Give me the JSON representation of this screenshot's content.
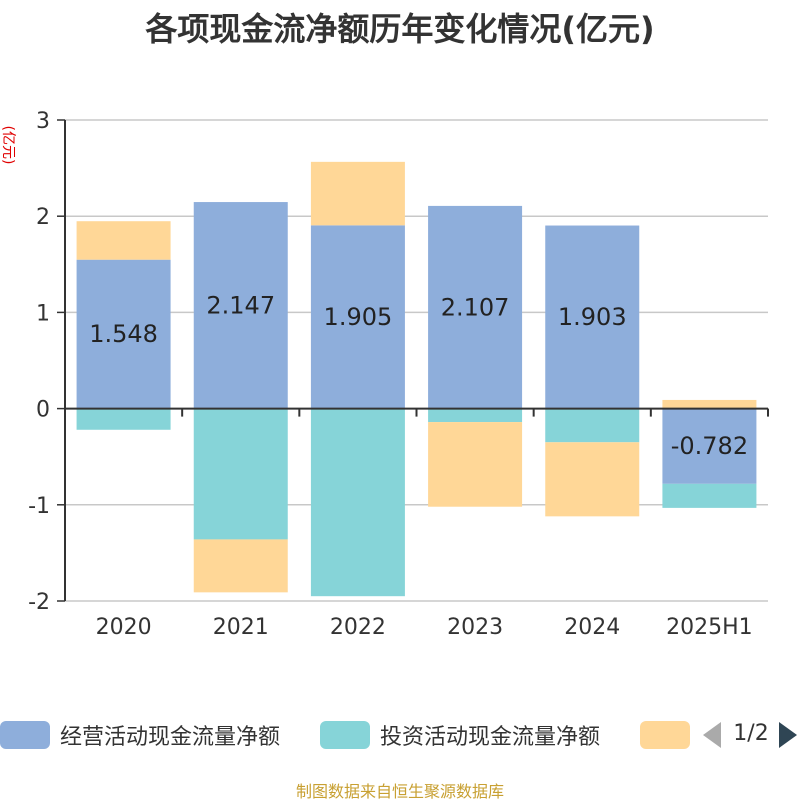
{
  "chart_data": {
    "type": "bar",
    "stacked": true,
    "title": "各项现金流净额历年变化情况(亿元)",
    "ylabel": "(亿元)",
    "ylim": [
      -2,
      3
    ],
    "yticks": [
      "3",
      "2",
      "1",
      "0",
      "-1",
      "-2"
    ],
    "ytick_values": [
      3,
      2,
      1,
      0,
      -1,
      -2
    ],
    "grid": true,
    "categories": [
      "2020",
      "2021",
      "2022",
      "2023",
      "2024",
      "2025H1"
    ],
    "series": [
      {
        "name": "经营活动现金流量净额",
        "color": "#8eaedb",
        "values": [
          1.548,
          2.147,
          1.905,
          2.107,
          1.903,
          -0.782
        ],
        "labels": [
          "1.548",
          "2.147",
          "1.905",
          "2.107",
          "1.903",
          "-0.782"
        ]
      },
      {
        "name": "投资活动现金流量净额",
        "color": "#86d4d8",
        "values": [
          -0.22,
          -1.36,
          -1.95,
          -0.14,
          -0.35,
          -0.25
        ]
      },
      {
        "name": "",
        "color": "#ffd797",
        "values": [
          0.4,
          -0.55,
          0.66,
          -0.88,
          -0.77,
          0.09
        ]
      }
    ],
    "legend_position": "bottom"
  },
  "legend": {
    "items": [
      "经营活动现金流量净额",
      "投资活动现金流量净额",
      ""
    ],
    "page": "1/2"
  },
  "source": "制图数据来自恒生聚源数据库"
}
